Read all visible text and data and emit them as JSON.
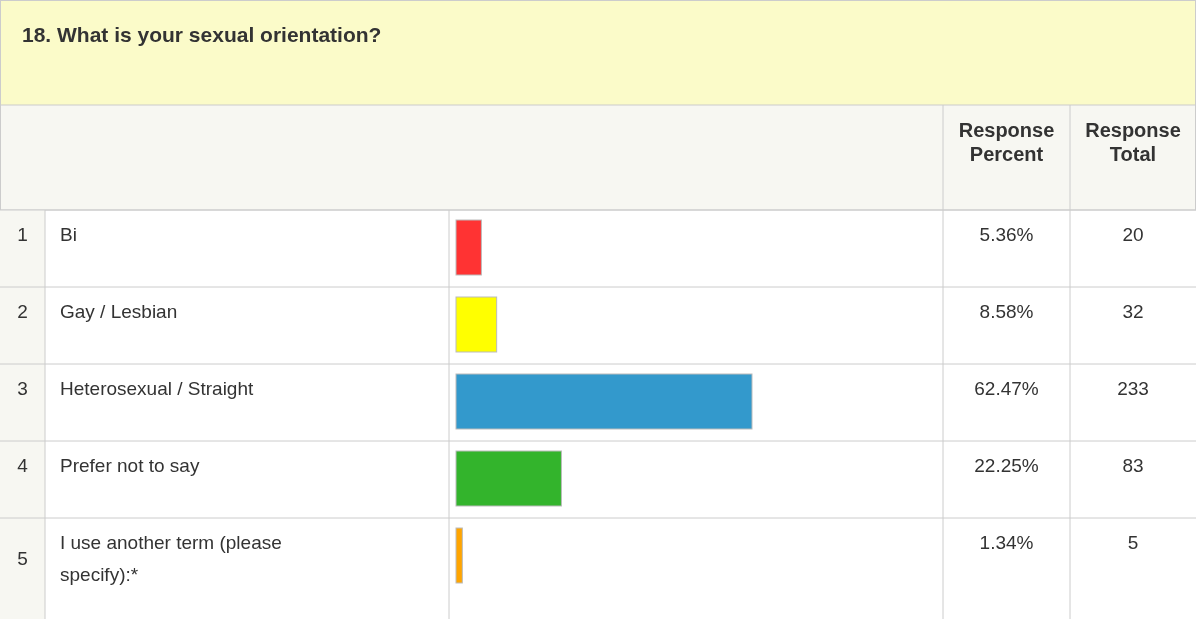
{
  "chart_data": {
    "type": "bar",
    "orientation": "horizontal",
    "title": "18. What is your sexual orientation?",
    "categories": [
      "Bi",
      "Gay / Lesbian",
      "Heterosexual / Straight",
      "Prefer not to say",
      "I use another term (please specify):*"
    ],
    "values": [
      5.36,
      8.58,
      62.47,
      22.25,
      1.34
    ],
    "colors": [
      "#ff3333",
      "#ffff00",
      "#3399cc",
      "#33b42c",
      "#ffa500"
    ],
    "value_labels": [
      "5.36%",
      "8.58%",
      "62.47%",
      "22.25%",
      "1.34%"
    ],
    "annotations": [
      "Response Percent",
      "Response Total",
      "1",
      "2",
      "3",
      "4",
      "5",
      "20",
      "32",
      "233",
      "83",
      "5"
    ]
  }
}
